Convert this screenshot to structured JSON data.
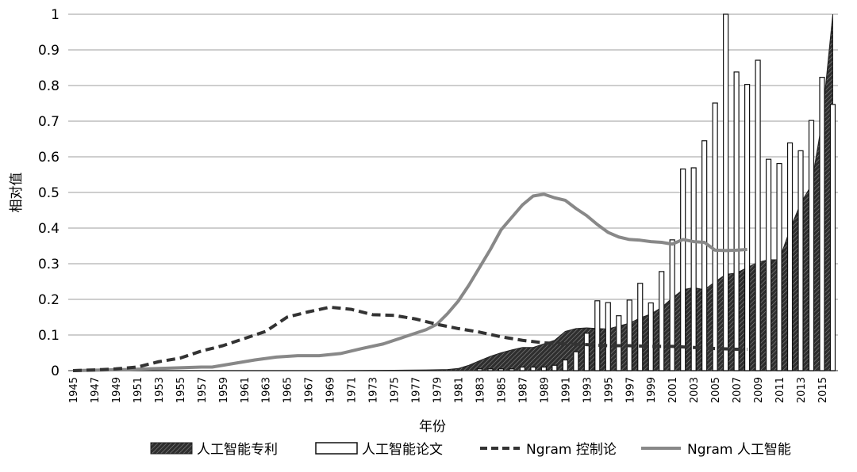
{
  "chart_data": {
    "type": "bar+area+line",
    "title": "",
    "xlabel": "年份",
    "ylabel": "相对值",
    "ylim": [
      0,
      1
    ],
    "yticks": [
      "0",
      "0.1",
      "0.2",
      "0.3",
      "0.4",
      "0.5",
      "0.6",
      "0.7",
      "0.8",
      "0.9",
      "1"
    ],
    "xticks": [
      "1945",
      "1947",
      "1949",
      "1951",
      "1953",
      "1955",
      "1957",
      "1959",
      "1961",
      "1963",
      "1965",
      "1967",
      "1969",
      "1971",
      "1973",
      "1975",
      "1977",
      "1979",
      "1981",
      "1983",
      "1985",
      "1987",
      "1989",
      "1991",
      "1993",
      "1995",
      "1997",
      "1999",
      "2001",
      "2003",
      "2005",
      "2007",
      "2009",
      "2011",
      "2013",
      "2015"
    ],
    "xlim": [
      1945,
      2016
    ],
    "grid": true,
    "legend_position": "bottom",
    "series": [
      {
        "name": "人工智能专利",
        "kind": "area-hatched",
        "color": "#333333",
        "x": [
          1945,
          1970,
          1975,
          1978,
          1980,
          1981,
          1982,
          1983,
          1984,
          1985,
          1986,
          1987,
          1988,
          1989,
          1990,
          1991,
          1992,
          1993,
          1994,
          1995,
          1996,
          1997,
          1998,
          1999,
          2000,
          2001,
          2002,
          2003,
          2004,
          2005,
          2006,
          2007,
          2008,
          2009,
          2010,
          2011,
          2012,
          2013,
          2014,
          2015,
          2016
        ],
        "y": [
          0,
          0,
          0.001,
          0.002,
          0.003,
          0.006,
          0.015,
          0.028,
          0.04,
          0.05,
          0.058,
          0.065,
          0.065,
          0.075,
          0.085,
          0.11,
          0.118,
          0.12,
          0.118,
          0.117,
          0.125,
          0.133,
          0.148,
          0.159,
          0.177,
          0.204,
          0.227,
          0.233,
          0.227,
          0.249,
          0.27,
          0.274,
          0.289,
          0.304,
          0.311,
          0.311,
          0.396,
          0.47,
          0.52,
          0.7,
          1.0
        ]
      },
      {
        "name": "人工智能论文",
        "kind": "bar",
        "color": "#ffffff",
        "x": [
          1983,
          1984,
          1985,
          1986,
          1987,
          1988,
          1989,
          1990,
          1991,
          1992,
          1993,
          1994,
          1995,
          1996,
          1997,
          1998,
          1999,
          2000,
          2001,
          2002,
          2003,
          2004,
          2005,
          2006,
          2007,
          2008,
          2009,
          2010,
          2011,
          2012,
          2013,
          2014,
          2015,
          2016
        ],
        "y": [
          0.005,
          0.005,
          0.005,
          0.005,
          0.01,
          0.01,
          0.01,
          0.015,
          0.03,
          0.053,
          0.105,
          0.196,
          0.191,
          0.154,
          0.198,
          0.245,
          0.19,
          0.278,
          0.367,
          0.566,
          0.569,
          0.645,
          0.751,
          1.0,
          0.838,
          0.803,
          0.871,
          0.593,
          0.581,
          0.639,
          0.617,
          0.702,
          0.823,
          0.747
        ]
      },
      {
        "name": "Ngram 控制论",
        "kind": "line-dashed",
        "color": "#333333",
        "x": [
          1945,
          1947,
          1949,
          1951,
          1953,
          1955,
          1957,
          1959,
          1961,
          1963,
          1965,
          1967,
          1969,
          1971,
          1973,
          1975,
          1977,
          1979,
          1981,
          1983,
          1985,
          1987,
          1989,
          1991,
          1993,
          1995,
          1997,
          1999,
          2001,
          2003,
          2005,
          2007,
          2008
        ],
        "y": [
          0,
          0.002,
          0.005,
          0.01,
          0.025,
          0.035,
          0.055,
          0.07,
          0.09,
          0.11,
          0.15,
          0.165,
          0.178,
          0.172,
          0.157,
          0.155,
          0.145,
          0.13,
          0.118,
          0.108,
          0.095,
          0.085,
          0.078,
          0.075,
          0.073,
          0.07,
          0.07,
          0.068,
          0.068,
          0.065,
          0.062,
          0.06,
          0.06
        ]
      },
      {
        "name": "Ngram 人工智能",
        "kind": "line",
        "color": "#888888",
        "x": [
          1945,
          1950,
          1955,
          1957,
          1958,
          1960,
          1962,
          1964,
          1966,
          1968,
          1970,
          1972,
          1974,
          1976,
          1978,
          1979,
          1980,
          1981,
          1982,
          1983,
          1984,
          1985,
          1986,
          1987,
          1988,
          1989,
          1990,
          1991,
          1992,
          1993,
          1994,
          1995,
          1996,
          1997,
          1998,
          1999,
          2000,
          2001,
          2002,
          2003,
          2004,
          2005,
          2006,
          2007,
          2008
        ],
        "y": [
          0,
          0.003,
          0.008,
          0.01,
          0.01,
          0.02,
          0.03,
          0.038,
          0.042,
          0.042,
          0.048,
          0.062,
          0.075,
          0.095,
          0.115,
          0.13,
          0.16,
          0.195,
          0.24,
          0.29,
          0.34,
          0.395,
          0.43,
          0.465,
          0.49,
          0.495,
          0.485,
          0.478,
          0.455,
          0.435,
          0.41,
          0.388,
          0.375,
          0.368,
          0.366,
          0.362,
          0.36,
          0.355,
          0.368,
          0.362,
          0.36,
          0.338,
          0.337,
          0.338,
          0.34
        ]
      }
    ]
  }
}
